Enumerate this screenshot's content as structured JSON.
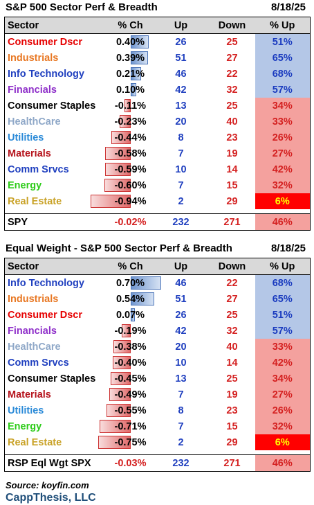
{
  "table1": {
    "title": "S&P 500 Sector Perf & Breadth",
    "date": "8/18/25",
    "headers": {
      "sector": "Sector",
      "ch": "% Ch",
      "up": "Up",
      "down": "Down",
      "pctup": "% Up"
    },
    "rows": [
      {
        "name": "Consumer Dscr",
        "color": "#e60000",
        "ch": "0.40%",
        "chv": 0.4,
        "up": "26",
        "down": "25",
        "pctup": "51%",
        "tone": "hi"
      },
      {
        "name": "Industrials",
        "color": "#e87722",
        "ch": "0.39%",
        "chv": 0.39,
        "up": "51",
        "down": "27",
        "pctup": "65%",
        "tone": "hi"
      },
      {
        "name": "Info Technology",
        "color": "#1f3fbf",
        "ch": "0.21%",
        "chv": 0.21,
        "up": "46",
        "down": "22",
        "pctup": "68%",
        "tone": "hi"
      },
      {
        "name": "Financials",
        "color": "#8e2fc9",
        "ch": "0.10%",
        "chv": 0.1,
        "up": "42",
        "down": "32",
        "pctup": "57%",
        "tone": "hi"
      },
      {
        "name": "Consumer Staples",
        "color": "#000000",
        "ch": "-0.11%",
        "chv": -0.11,
        "up": "13",
        "down": "25",
        "pctup": "34%",
        "tone": "lo"
      },
      {
        "name": "HealthCare",
        "color": "#8fa8c8",
        "ch": "-0.23%",
        "chv": -0.23,
        "up": "20",
        "down": "40",
        "pctup": "33%",
        "tone": "lo"
      },
      {
        "name": "Utilities",
        "color": "#2a8ad8",
        "ch": "-0.44%",
        "chv": -0.44,
        "up": "8",
        "down": "23",
        "pctup": "26%",
        "tone": "lo"
      },
      {
        "name": "Materials",
        "color": "#b5121b",
        "ch": "-0.58%",
        "chv": -0.58,
        "up": "7",
        "down": "19",
        "pctup": "27%",
        "tone": "lo"
      },
      {
        "name": "Comm Srvcs",
        "color": "#1f3fbf",
        "ch": "-0.59%",
        "chv": -0.59,
        "up": "10",
        "down": "14",
        "pctup": "42%",
        "tone": "lo"
      },
      {
        "name": "Energy",
        "color": "#2ecc1a",
        "ch": "-0.60%",
        "chv": -0.6,
        "up": "7",
        "down": "15",
        "pctup": "32%",
        "tone": "lo"
      },
      {
        "name": "Real Estate",
        "color": "#c9a227",
        "ch": "-0.94%",
        "chv": -0.94,
        "up": "2",
        "down": "29",
        "pctup": "6%",
        "tone": "min"
      }
    ],
    "total": {
      "name": "SPY",
      "ch": "-0.02%",
      "up": "232",
      "down": "271",
      "pctup": "46%"
    }
  },
  "table2": {
    "title": "Equal Weight - S&P 500 Sector Perf & Breadth",
    "date": "8/18/25",
    "headers": {
      "sector": "Sector",
      "ch": "% Ch",
      "up": "Up",
      "down": "Down",
      "pctup": "% Up"
    },
    "rows": [
      {
        "name": "Info Technology",
        "color": "#1f3fbf",
        "ch": "0.70%",
        "chv": 0.7,
        "up": "46",
        "down": "22",
        "pctup": "68%",
        "tone": "hi"
      },
      {
        "name": "Industrials",
        "color": "#e87722",
        "ch": "0.54%",
        "chv": 0.54,
        "up": "51",
        "down": "27",
        "pctup": "65%",
        "tone": "hi"
      },
      {
        "name": "Consumer Dscr",
        "color": "#e60000",
        "ch": "0.07%",
        "chv": 0.07,
        "up": "26",
        "down": "25",
        "pctup": "51%",
        "tone": "hi"
      },
      {
        "name": "Financials",
        "color": "#8e2fc9",
        "ch": "-0.19%",
        "chv": -0.19,
        "up": "42",
        "down": "32",
        "pctup": "57%",
        "tone": "hi"
      },
      {
        "name": "HealthCare",
        "color": "#8fa8c8",
        "ch": "-0.38%",
        "chv": -0.38,
        "up": "20",
        "down": "40",
        "pctup": "33%",
        "tone": "lo"
      },
      {
        "name": "Comm Srvcs",
        "color": "#1f3fbf",
        "ch": "-0.40%",
        "chv": -0.4,
        "up": "10",
        "down": "14",
        "pctup": "42%",
        "tone": "lo"
      },
      {
        "name": "Consumer Staples",
        "color": "#000000",
        "ch": "-0.45%",
        "chv": -0.45,
        "up": "13",
        "down": "25",
        "pctup": "34%",
        "tone": "lo"
      },
      {
        "name": "Materials",
        "color": "#b5121b",
        "ch": "-0.49%",
        "chv": -0.49,
        "up": "7",
        "down": "19",
        "pctup": "27%",
        "tone": "lo"
      },
      {
        "name": "Utilities",
        "color": "#2a8ad8",
        "ch": "-0.55%",
        "chv": -0.55,
        "up": "8",
        "down": "23",
        "pctup": "26%",
        "tone": "lo"
      },
      {
        "name": "Energy",
        "color": "#2ecc1a",
        "ch": "-0.71%",
        "chv": -0.71,
        "up": "7",
        "down": "15",
        "pctup": "32%",
        "tone": "lo"
      },
      {
        "name": "Real Estate",
        "color": "#c9a227",
        "ch": "-0.75%",
        "chv": -0.75,
        "up": "2",
        "down": "29",
        "pctup": "6%",
        "tone": "min"
      }
    ],
    "total": {
      "name": "RSP Eql Wgt SPX",
      "ch": "-0.03%",
      "up": "232",
      "down": "271",
      "pctup": "46%"
    }
  },
  "footer": {
    "source": "Source: koyfin.com",
    "brand": "CappThesis, LLC"
  }
}
